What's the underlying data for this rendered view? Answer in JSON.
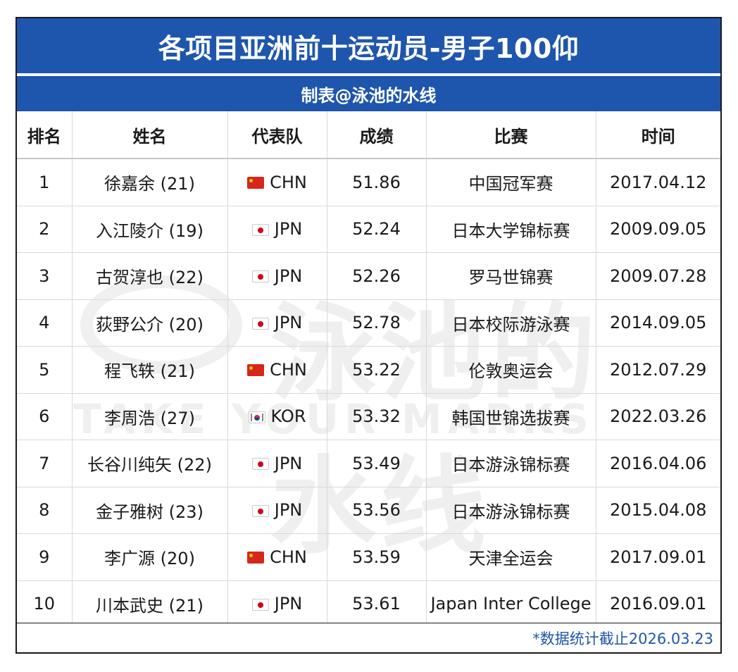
{
  "title": "各项目亚洲前十运动员-男子100仰",
  "subtitle": "制表@泳池的水线",
  "watermark": {
    "cn": "泳池的水线",
    "en": "TAKE YOUR MARKS"
  },
  "columns": [
    "排名",
    "姓名",
    "代表队",
    "成绩",
    "比赛",
    "时间"
  ],
  "rows": [
    {
      "rank": "1",
      "name": "徐嘉余 (21)",
      "flag": "CHN",
      "team": "CHN",
      "time": "51.86",
      "meet": "中国冠军赛",
      "date": "2017.04.12"
    },
    {
      "rank": "2",
      "name": "入江陵介 (19)",
      "flag": "JPN",
      "team": "JPN",
      "time": "52.24",
      "meet": "日本大学锦标赛",
      "date": "2009.09.05"
    },
    {
      "rank": "3",
      "name": "古贺淳也 (22)",
      "flag": "JPN",
      "team": "JPN",
      "time": "52.26",
      "meet": "罗马世锦赛",
      "date": "2009.07.28"
    },
    {
      "rank": "4",
      "name": "荻野公介 (20)",
      "flag": "JPN",
      "team": "JPN",
      "time": "52.78",
      "meet": "日本校际游泳赛",
      "date": "2014.09.05"
    },
    {
      "rank": "5",
      "name": "程飞轶 (21)",
      "flag": "CHN",
      "team": "CHN",
      "time": "53.22",
      "meet": "伦敦奥运会",
      "date": "2012.07.29"
    },
    {
      "rank": "6",
      "name": "李周浩 (27)",
      "flag": "KOR",
      "team": "KOR",
      "time": "53.32",
      "meet": "韩国世锦选拔赛",
      "date": "2022.03.26"
    },
    {
      "rank": "7",
      "name": "长谷川纯矢 (22)",
      "flag": "JPN",
      "team": "JPN",
      "time": "53.49",
      "meet": "日本游泳锦标赛",
      "date": "2016.04.06"
    },
    {
      "rank": "8",
      "name": "金子雅树 (23)",
      "flag": "JPN",
      "team": "JPN",
      "time": "53.56",
      "meet": "日本游泳锦标赛",
      "date": "2015.04.08"
    },
    {
      "rank": "9",
      "name": "李广源 (20)",
      "flag": "CHN",
      "team": "CHN",
      "time": "53.59",
      "meet": "天津全运会",
      "date": "2017.09.01"
    },
    {
      "rank": "10",
      "name": "川本武史 (21)",
      "flag": "JPN",
      "team": "JPN",
      "time": "53.61",
      "meet": "Japan Inter College",
      "date": "2016.09.01"
    }
  ],
  "footer": "*数据统计截止2026.03.23",
  "colors": {
    "header_blue": "#1f56ad",
    "footer_text": "#1f56ad"
  }
}
